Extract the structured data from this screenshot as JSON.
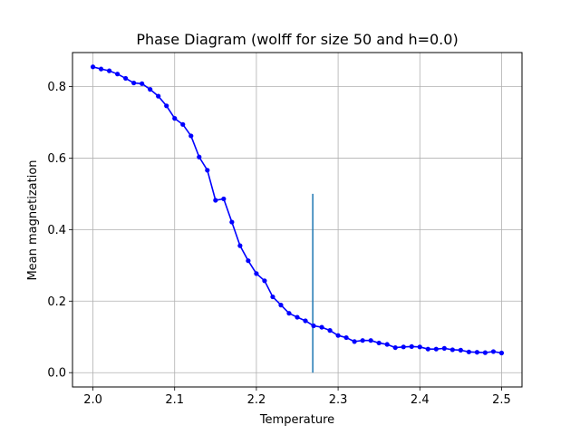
{
  "chart_data": {
    "type": "line",
    "title": "Phase Diagram (wolff for size 50 and h=0.0)",
    "xlabel": "Temperature",
    "ylabel": "Mean magnetization",
    "xlim": [
      1.975,
      2.525
    ],
    "ylim": [
      -0.04,
      0.895
    ],
    "xticks": [
      2.0,
      2.1,
      2.2,
      2.3,
      2.4,
      2.5
    ],
    "xtick_labels": [
      "2.0",
      "2.1",
      "2.2",
      "2.3",
      "2.4",
      "2.5"
    ],
    "yticks": [
      0.0,
      0.2,
      0.4,
      0.6,
      0.8
    ],
    "ytick_labels": [
      "0.0",
      "0.2",
      "0.4",
      "0.6",
      "0.8"
    ],
    "grid": true,
    "series": [
      {
        "color": "#0000ff",
        "marker": "circle",
        "x": [
          2.0,
          2.01,
          2.02,
          2.03,
          2.04,
          2.05,
          2.06,
          2.07,
          2.08,
          2.09,
          2.1,
          2.11,
          2.12,
          2.13,
          2.14,
          2.15,
          2.16,
          2.17,
          2.18,
          2.19,
          2.2,
          2.21,
          2.22,
          2.23,
          2.24,
          2.25,
          2.26,
          2.27,
          2.28,
          2.29,
          2.3,
          2.31,
          2.32,
          2.33,
          2.34,
          2.35,
          2.36,
          2.37,
          2.38,
          2.39,
          2.4,
          2.41,
          2.42,
          2.43,
          2.44,
          2.45,
          2.46,
          2.47,
          2.48,
          2.49,
          2.5
        ],
        "y": [
          0.855,
          0.849,
          0.844,
          0.835,
          0.823,
          0.81,
          0.808,
          0.792,
          0.773,
          0.746,
          0.711,
          0.694,
          0.662,
          0.603,
          0.566,
          0.482,
          0.486,
          0.421,
          0.355,
          0.313,
          0.277,
          0.257,
          0.212,
          0.189,
          0.166,
          0.155,
          0.145,
          0.131,
          0.127,
          0.118,
          0.104,
          0.098,
          0.087,
          0.09,
          0.09,
          0.083,
          0.079,
          0.07,
          0.072,
          0.073,
          0.072,
          0.066,
          0.066,
          0.068,
          0.064,
          0.063,
          0.058,
          0.057,
          0.056,
          0.059,
          0.055
        ]
      }
    ],
    "vline": {
      "x": 2.269,
      "ymin": 0.0,
      "ymax": 0.5,
      "color": "#1f77b4"
    }
  }
}
